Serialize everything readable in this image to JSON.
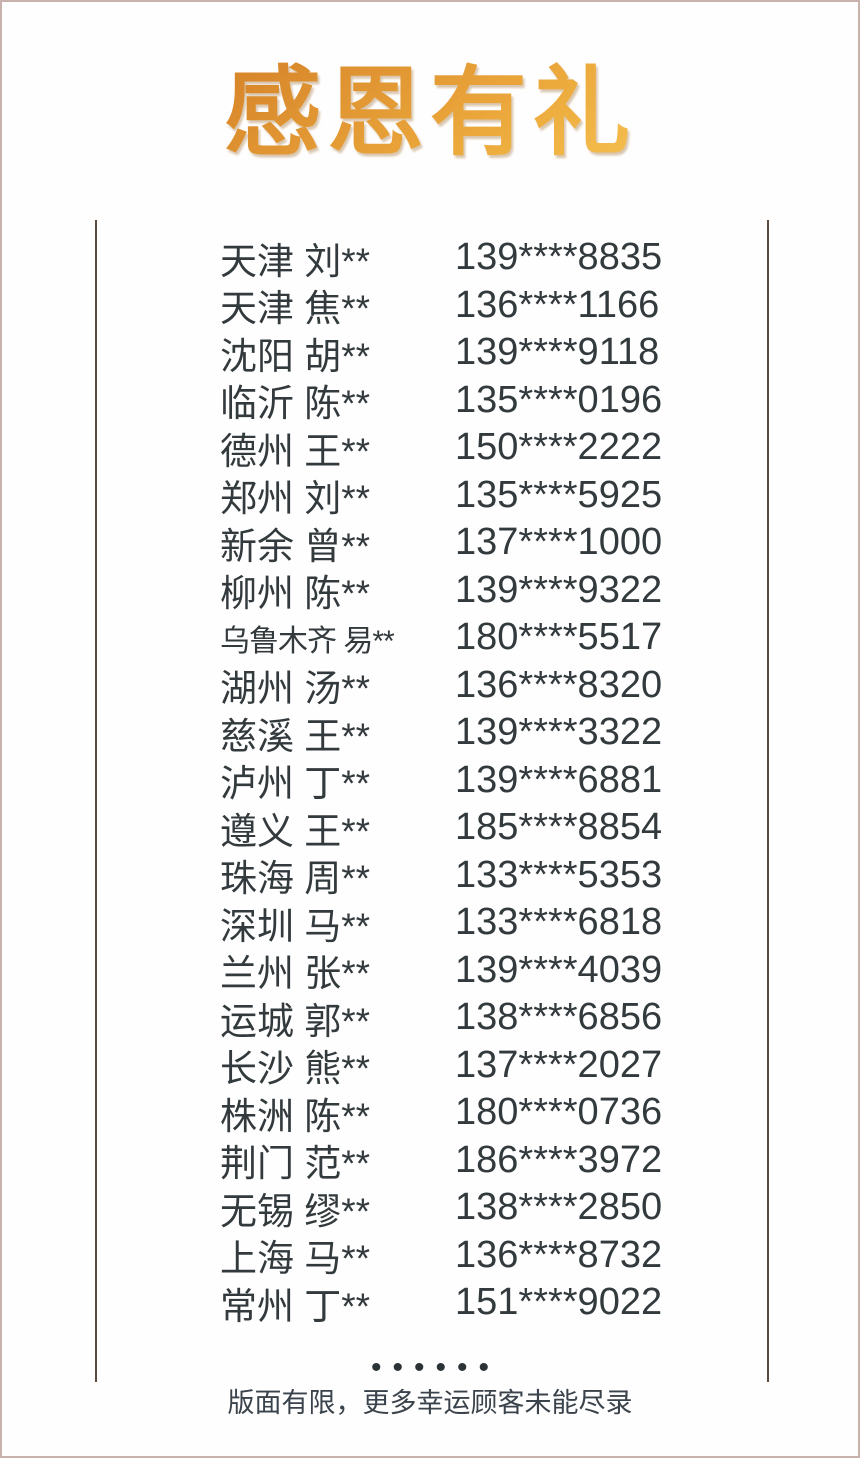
{
  "poster": {
    "title": "感恩有礼",
    "dots": "••••••",
    "footer_note": "版面有限，更多幸运顾客未能尽录"
  },
  "colors": {
    "background": "#fffefe",
    "outer_border": "#c9b2ad",
    "divider_line": "#5a4a40",
    "list_text": "#333a3d",
    "title_gradient_top": "#c9771f",
    "title_gradient_bottom": "#f9cb58"
  },
  "winners": [
    {
      "name": "天津 刘**",
      "phone": "139****8835"
    },
    {
      "name": "天津 焦**",
      "phone": "136****1166"
    },
    {
      "name": "沈阳 胡**",
      "phone": "139****9118"
    },
    {
      "name": "临沂 陈**",
      "phone": "135****0196"
    },
    {
      "name": "德州 王**",
      "phone": "150****2222"
    },
    {
      "name": "郑州 刘**",
      "phone": "135****5925"
    },
    {
      "name": "新余 曾**",
      "phone": "137****1000"
    },
    {
      "name": "柳州 陈**",
      "phone": "139****9322"
    },
    {
      "name": "乌鲁木齐 易**",
      "phone": "180****5517"
    },
    {
      "name": "湖州 汤**",
      "phone": "136****8320"
    },
    {
      "name": "慈溪 王**",
      "phone": "139****3322"
    },
    {
      "name": "泸州 丁**",
      "phone": "139****6881"
    },
    {
      "name": "遵义 王**",
      "phone": "185****8854"
    },
    {
      "name": "珠海 周**",
      "phone": "133****5353"
    },
    {
      "name": "深圳 马**",
      "phone": "133****6818"
    },
    {
      "name": "兰州 张**",
      "phone": "139****4039"
    },
    {
      "name": "运城 郭**",
      "phone": "138****6856"
    },
    {
      "name": "长沙 熊**",
      "phone": "137****2027"
    },
    {
      "name": "株洲 陈**",
      "phone": "180****0736"
    },
    {
      "name": "荆门 范**",
      "phone": "186****3972"
    },
    {
      "name": "无锡 缪**",
      "phone": "138****2850"
    },
    {
      "name": "上海 马**",
      "phone": "136****8732"
    },
    {
      "name": "常州 丁**",
      "phone": "151****9022"
    }
  ]
}
